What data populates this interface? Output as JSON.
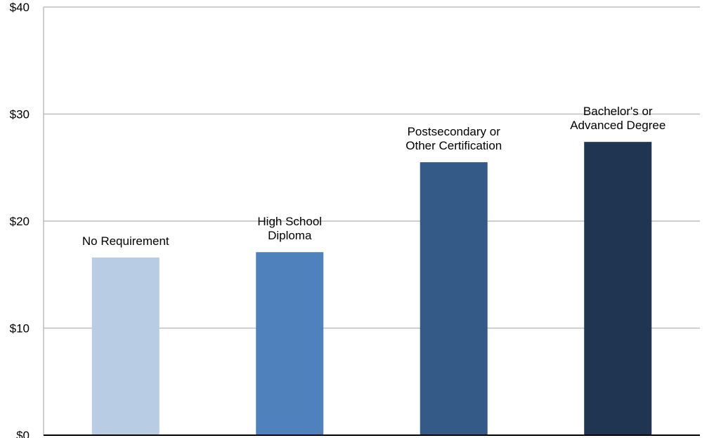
{
  "chart_data": {
    "type": "bar",
    "categories": [
      [
        "No Requirement"
      ],
      [
        "High School",
        "Diploma"
      ],
      [
        "Postsecondary or",
        "Other Certification"
      ],
      [
        "Bachelor's or",
        "Advanced Degree"
      ]
    ],
    "values": [
      16.6,
      17.1,
      25.5,
      27.4
    ],
    "colors": [
      "#b8cce4",
      "#4f81bd",
      "#345a87",
      "#1f3552"
    ],
    "ylim": [
      0,
      40
    ],
    "yticks": [
      0,
      10,
      20,
      30,
      40
    ],
    "ytick_labels": [
      "$0",
      "$10",
      "$20",
      "$30",
      "$40"
    ],
    "grid": true,
    "title": "",
    "xlabel": "",
    "ylabel": ""
  }
}
